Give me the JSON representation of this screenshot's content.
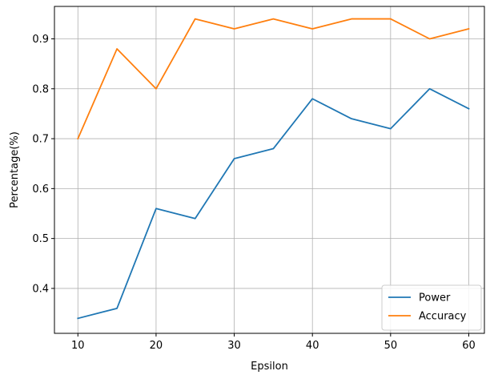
{
  "chart_data": {
    "type": "line",
    "title": "",
    "xlabel": "Epsilon",
    "ylabel": "Percentage(%)",
    "x": [
      10,
      15,
      20,
      25,
      30,
      35,
      40,
      45,
      50,
      55,
      60
    ],
    "xlim": [
      7,
      62
    ],
    "ylim": [
      0.31,
      0.965
    ],
    "xticks": [
      10,
      20,
      30,
      40,
      50,
      60
    ],
    "xtick_labels": [
      "10",
      "20",
      "30",
      "40",
      "50",
      "60"
    ],
    "yticks": [
      0.4,
      0.5,
      0.6,
      0.7,
      0.8,
      0.9
    ],
    "ytick_labels": [
      "0.4",
      "0.5",
      "0.6",
      "0.7",
      "0.8",
      "0.9"
    ],
    "grid": true,
    "legend_position": "bottom-right",
    "series": [
      {
        "name": "Power",
        "color": "#1f77b4",
        "values": [
          0.34,
          0.36,
          0.56,
          0.54,
          0.66,
          0.68,
          0.78,
          0.74,
          0.72,
          0.8,
          0.76
        ]
      },
      {
        "name": "Accuracy",
        "color": "#ff7f0e",
        "values": [
          0.7,
          0.88,
          0.8,
          0.94,
          0.92,
          0.94,
          0.92,
          0.94,
          0.94,
          0.9,
          0.92
        ]
      }
    ]
  }
}
